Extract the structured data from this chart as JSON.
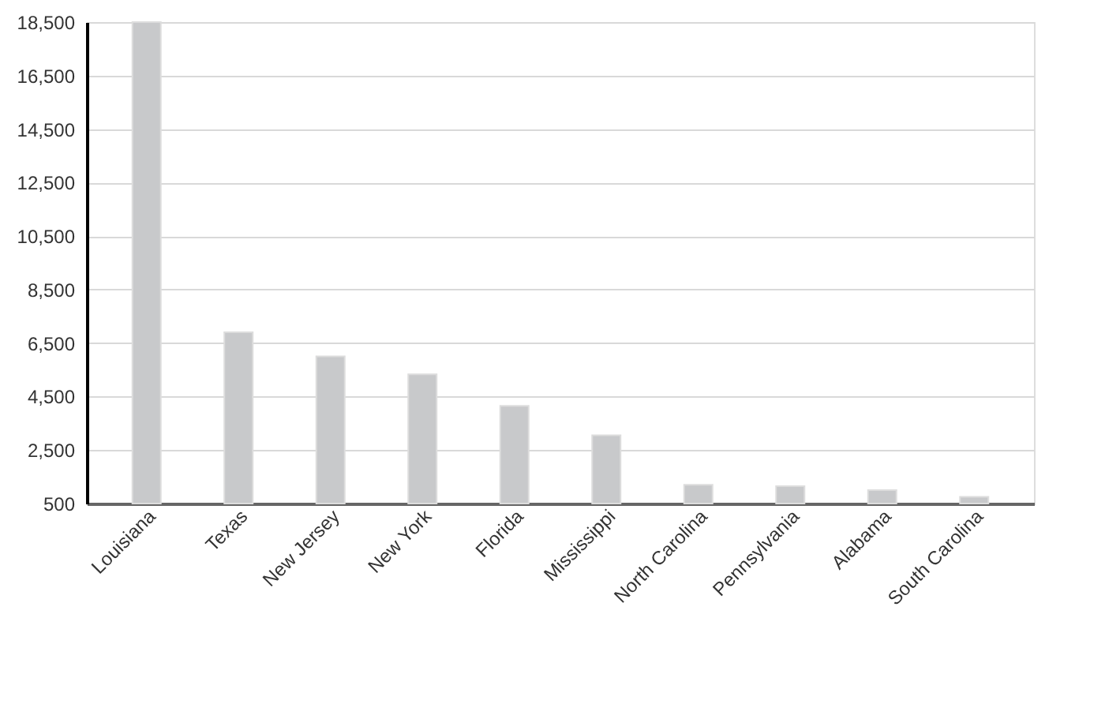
{
  "chart_data": {
    "type": "bar",
    "categories": [
      "Louisiana",
      "Texas",
      "New Jersey",
      "New York",
      "Florida",
      "Mississippi",
      "North Carolina",
      "Pennsylvania",
      "Alabama",
      "South Carolina"
    ],
    "values": [
      18500,
      6900,
      6000,
      5330,
      4150,
      3050,
      1200,
      1150,
      1000,
      750
    ],
    "color": "#c8c9cb",
    "ylim": [
      500,
      18500
    ],
    "yticks": [
      {
        "value": 500,
        "label": "500"
      },
      {
        "value": 2500,
        "label": "2,500"
      },
      {
        "value": 4500,
        "label": "4,500"
      },
      {
        "value": 6500,
        "label": "6,500"
      },
      {
        "value": 8500,
        "label": "8,500"
      },
      {
        "value": 10500,
        "label": "10,500"
      },
      {
        "value": 12500,
        "label": "12,500"
      },
      {
        "value": 14500,
        "label": "14,500"
      },
      {
        "value": 16500,
        "label": "16,500"
      },
      {
        "value": 18500,
        "label": "18,500"
      }
    ],
    "grid": "y"
  }
}
